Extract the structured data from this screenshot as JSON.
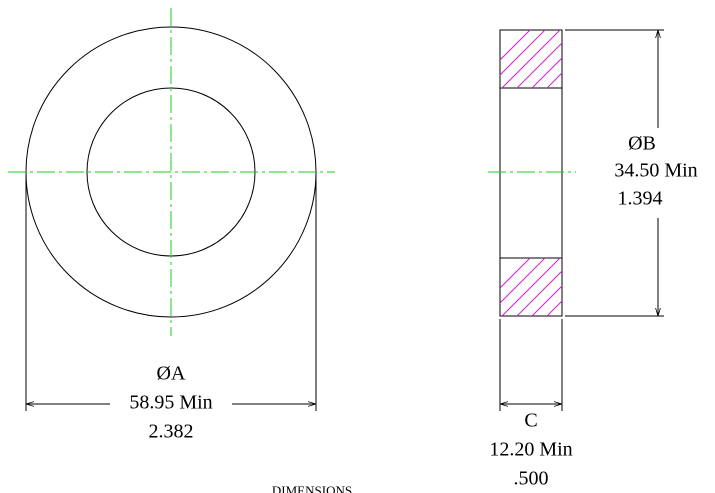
{
  "dimension_a": {
    "symbol": "ØA",
    "metric": "58.95 Min",
    "inch": "2.382"
  },
  "dimension_b": {
    "symbol": "ØB",
    "metric": "34.50 Min",
    "inch": "1.394"
  },
  "dimension_c": {
    "symbol": "C",
    "metric": "12.20 Min",
    "inch": ".500"
  },
  "footer": {
    "title": "DIMENSIONS"
  }
}
